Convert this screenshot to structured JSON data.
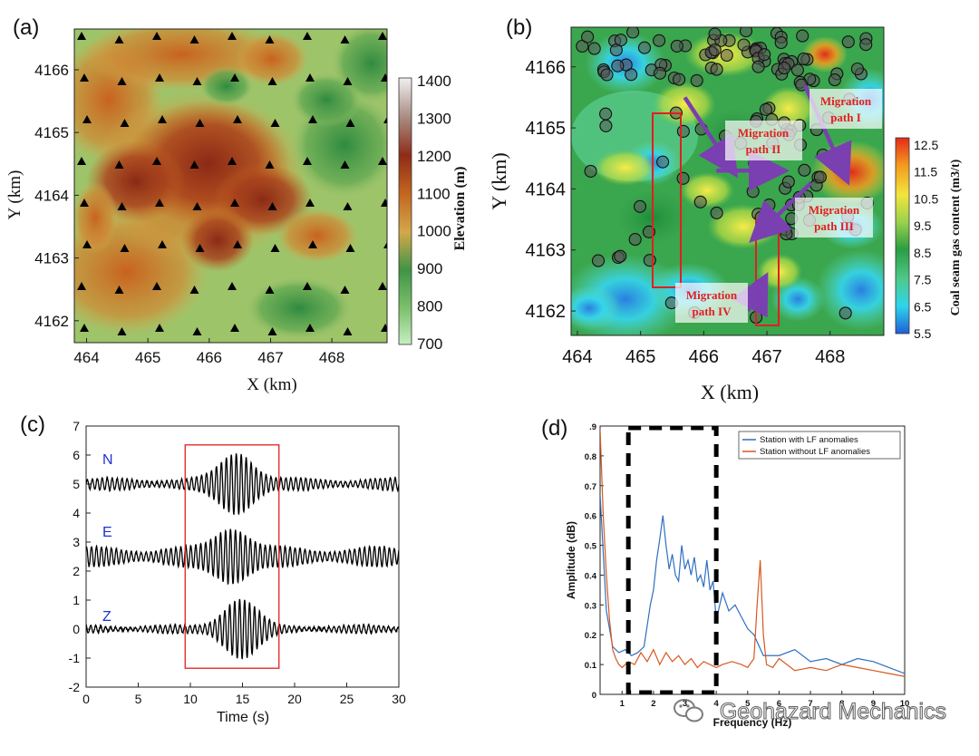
{
  "panels": {
    "a": {
      "label": "(a)",
      "xlabel": "X (km)",
      "ylabel": "Y (km)",
      "xticks": [
        "464",
        "465",
        "466",
        "467",
        "468"
      ],
      "yticks": [
        "4166",
        "4165",
        "4164",
        "4163",
        "4162"
      ],
      "colorbar": {
        "label": "Elevation (m)",
        "ticks": [
          "1400",
          "1300",
          "1200",
          "1100",
          "1000",
          "900",
          "800",
          "700"
        ],
        "colors": [
          "#bfe8b0",
          "#8fc27a",
          "#4e9a4a",
          "#c89a3a",
          "#d97b2a",
          "#b25020",
          "#8c2e1a",
          "#c8b0a8",
          "#e8e8e8"
        ]
      }
    },
    "b": {
      "label": "(b)",
      "xlabel": "X (km)",
      "ylabel": "Y (km)",
      "xticks": [
        "464",
        "465",
        "466",
        "467",
        "468"
      ],
      "yticks": [
        "4166",
        "4165",
        "4164",
        "4163",
        "4162"
      ],
      "colorbar": {
        "label": "Coal seam gas content (m3/t)",
        "ticks": [
          "12.5",
          "11.5",
          "10.5",
          "9.5",
          "8.5",
          "7.5",
          "6.5",
          "5.5"
        ],
        "colors": [
          "#2a6ed8",
          "#3ad0e8",
          "#6be0b0",
          "#2fa34a",
          "#93d048",
          "#f2e640",
          "#f4a020",
          "#e8301c"
        ]
      },
      "annotations": [
        {
          "line1": "Migration",
          "line2": "path I"
        },
        {
          "line1": "Migration",
          "line2": "path II"
        },
        {
          "line1": "Migration",
          "line2": "path III"
        },
        {
          "line1": "Migration",
          "line2": "path IV"
        }
      ]
    },
    "c": {
      "label": "(c)",
      "xlabel": "Time (s)",
      "xticks": [
        "0",
        "5",
        "10",
        "15",
        "20",
        "25",
        "30"
      ],
      "yticks": [
        "7",
        "6",
        "5",
        "4",
        "3",
        "2",
        "1",
        "0",
        "-1",
        "-2"
      ],
      "traces": [
        "N",
        "E",
        "Z"
      ]
    },
    "d": {
      "label": "(d)",
      "xlabel": "Frequency (Hz)",
      "ylabel": "Amplitude (dB)",
      "yticks": [
        ".9",
        "0.8",
        "0.7",
        "0.6",
        "0.5",
        "0.4",
        "0.3",
        "0.2",
        "0.1",
        "0"
      ],
      "xticks": [
        "1",
        "2",
        "3",
        "4",
        "5",
        "6",
        "7",
        "8",
        "9",
        "10"
      ],
      "legend": [
        "Station with LF anomalies",
        "Station without LF anomalies"
      ],
      "series_colors": [
        "#2f6fbf",
        "#d8581e"
      ]
    }
  },
  "watermark": "Geohazard Mechanics",
  "chart_data": [
    {
      "type": "heatmap",
      "title": "(a)",
      "xlabel": "X (km)",
      "ylabel": "Y (km)",
      "xlim": [
        463.8,
        468.9
      ],
      "ylim": [
        4161.65,
        4166.65
      ],
      "colorbar_label": "Elevation (m)",
      "colorbar_range": [
        700,
        1400
      ],
      "stations_marker": "triangle"
    },
    {
      "type": "heatmap",
      "title": "(b)",
      "xlabel": "X (km)",
      "ylabel": "Y (km)",
      "xlim": [
        463.9,
        468.85
      ],
      "ylim": [
        4161.6,
        4166.65
      ],
      "colorbar_label": "Coal seam gas content (m3/t)",
      "colorbar_range": [
        5.5,
        12.5
      ],
      "rectangles": [
        {
          "x": [
            465.08,
            465.55
          ],
          "y": [
            4162.3,
            4165.25
          ]
        },
        {
          "x": [
            466.78,
            467.12
          ],
          "y": [
            4161.85,
            4163.45
          ]
        }
      ],
      "arrows": [
        {
          "name": "Migration path I",
          "from": [
            467.6,
            4165.7
          ],
          "to": [
            468.2,
            4164.3
          ]
        },
        {
          "name": "Migration path II",
          "from": [
            465.7,
            4165.5
          ],
          "to": [
            466.4,
            4164.4
          ]
        },
        {
          "name": "Migration path II",
          "from": [
            466.2,
            4164.3
          ],
          "to": [
            467.1,
            4164.3
          ]
        },
        {
          "name": "Migration path III",
          "from": [
            467.7,
            4164.1
          ],
          "to": [
            466.9,
            4163.3
          ]
        },
        {
          "name": "Migration path IV",
          "from": [
            466.7,
            4162.0
          ],
          "to": [
            466.9,
            4162.4
          ]
        }
      ]
    },
    {
      "type": "line",
      "title": "(c)",
      "xlabel": "Time (s)",
      "ylabel": "",
      "xlim": [
        0,
        30
      ],
      "ylim": [
        -2,
        7
      ],
      "series": [
        {
          "name": "N",
          "offset": 5,
          "burst_center_s": 14.5,
          "peak_amplitude": 0.95,
          "background_amplitude": 0.15
        },
        {
          "name": "E",
          "offset": 2.5,
          "burst_center_s": 14.0,
          "peak_amplitude": 0.8,
          "background_amplitude": 0.25
        },
        {
          "name": "Z",
          "offset": 0,
          "burst_center_s": 14.8,
          "peak_amplitude": 0.95,
          "background_amplitude": 0.1
        }
      ],
      "highlight_box": {
        "x": [
          9.5,
          18.5
        ],
        "y": [
          -1.35,
          6.35
        ]
      }
    },
    {
      "type": "line",
      "title": "(d)",
      "xlabel": "Frequency (Hz)",
      "ylabel": "Amplitude (dB)",
      "xlim": [
        0.3,
        10
      ],
      "ylim": [
        0,
        0.9
      ],
      "dashed_box": {
        "x": [
          1.2,
          4.0
        ],
        "y": [
          0,
          0.9
        ]
      },
      "series": [
        {
          "name": "Station with LF anomalies",
          "x": [
            0.3,
            0.5,
            0.7,
            0.9,
            1.1,
            1.3,
            1.5,
            1.7,
            1.9,
            2.0,
            2.1,
            2.2,
            2.3,
            2.4,
            2.5,
            2.6,
            2.7,
            2.8,
            2.9,
            3.0,
            3.1,
            3.2,
            3.3,
            3.4,
            3.5,
            3.6,
            3.7,
            3.8,
            3.9,
            4.0,
            4.2,
            4.4,
            4.6,
            4.8,
            5.0,
            5.2,
            5.5,
            6.0,
            6.5,
            7.0,
            7.5,
            8.0,
            8.5,
            9.0,
            9.5,
            10.0
          ],
          "y": [
            0.67,
            0.28,
            0.16,
            0.14,
            0.15,
            0.13,
            0.14,
            0.16,
            0.3,
            0.35,
            0.45,
            0.52,
            0.6,
            0.5,
            0.42,
            0.47,
            0.4,
            0.38,
            0.5,
            0.42,
            0.45,
            0.4,
            0.46,
            0.38,
            0.4,
            0.36,
            0.45,
            0.35,
            0.38,
            0.25,
            0.34,
            0.28,
            0.3,
            0.26,
            0.22,
            0.2,
            0.13,
            0.13,
            0.15,
            0.11,
            0.12,
            0.1,
            0.12,
            0.11,
            0.09,
            0.07
          ]
        },
        {
          "name": "Station without LF anomalies",
          "x": [
            0.3,
            0.4,
            0.5,
            0.6,
            0.7,
            0.8,
            0.9,
            1.0,
            1.2,
            1.4,
            1.6,
            1.8,
            2.0,
            2.2,
            2.4,
            2.6,
            2.8,
            3.0,
            3.2,
            3.4,
            3.6,
            3.8,
            4.0,
            4.2,
            4.5,
            4.8,
            5.0,
            5.2,
            5.3,
            5.4,
            5.5,
            5.6,
            5.8,
            6.0,
            6.5,
            7.0,
            7.5,
            8.0,
            8.5,
            9.0,
            9.5,
            10.0
          ],
          "y": [
            0.89,
            0.6,
            0.4,
            0.25,
            0.15,
            0.12,
            0.1,
            0.09,
            0.11,
            0.1,
            0.14,
            0.11,
            0.15,
            0.1,
            0.14,
            0.11,
            0.13,
            0.1,
            0.12,
            0.09,
            0.11,
            0.1,
            0.09,
            0.1,
            0.11,
            0.1,
            0.09,
            0.12,
            0.3,
            0.45,
            0.2,
            0.1,
            0.09,
            0.12,
            0.08,
            0.09,
            0.08,
            0.1,
            0.09,
            0.08,
            0.07,
            0.06
          ]
        }
      ]
    }
  ]
}
